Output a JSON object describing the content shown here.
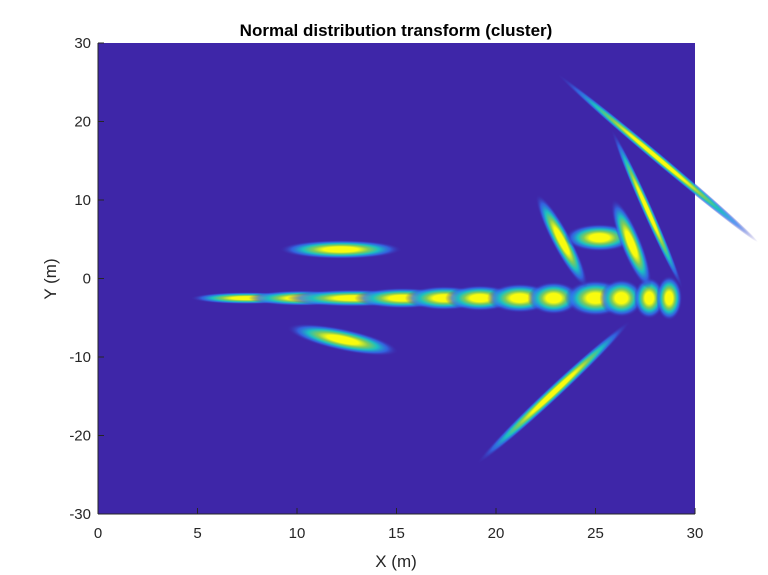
{
  "chart_data": {
    "type": "heatmap",
    "title": "Normal distribution transform (cluster)",
    "xlabel": "X (m)",
    "ylabel": "Y (m)",
    "xlim": [
      0,
      30
    ],
    "ylim": [
      -30,
      30
    ],
    "xticks": [
      0,
      5,
      10,
      15,
      20,
      25,
      30
    ],
    "yticks": [
      30,
      20,
      10,
      0,
      -10,
      -20,
      -30
    ],
    "xtick_labels": [
      "0",
      "5",
      "10",
      "15",
      "20",
      "25",
      "30"
    ],
    "ytick_labels": [
      "30",
      "20",
      "10",
      "0",
      "-10",
      "-20",
      "-30"
    ],
    "grid": false,
    "colormap": "parula",
    "colors": {
      "background": "#3e26a8",
      "low": "#3e26a8",
      "mid_blue": "#2f74f0",
      "cyan": "#1bbfc2",
      "green": "#80cb59",
      "yellow": "#f9fb0e"
    },
    "distributions": [
      {
        "mean": [
          7.5,
          -2.5
        ],
        "sigma_major": 1.3,
        "sigma_minor": 0.35,
        "angle_deg": 0
      },
      {
        "mean": [
          10.2,
          -2.5
        ],
        "sigma_major": 1.2,
        "sigma_minor": 0.45,
        "angle_deg": 0
      },
      {
        "mean": [
          12.8,
          -2.5
        ],
        "sigma_major": 1.5,
        "sigma_minor": 0.5,
        "angle_deg": 0
      },
      {
        "mean": [
          15.3,
          -2.5
        ],
        "sigma_major": 1.1,
        "sigma_minor": 0.6,
        "angle_deg": 0
      },
      {
        "mean": [
          17.4,
          -2.5
        ],
        "sigma_major": 0.9,
        "sigma_minor": 0.7,
        "angle_deg": 0
      },
      {
        "mean": [
          19.2,
          -2.5
        ],
        "sigma_major": 0.8,
        "sigma_minor": 0.75,
        "angle_deg": 0
      },
      {
        "mean": [
          21.2,
          -2.5
        ],
        "sigma_major": 0.75,
        "sigma_minor": 0.85,
        "angle_deg": 0
      },
      {
        "mean": [
          22.9,
          -2.5
        ],
        "sigma_major": 0.6,
        "sigma_minor": 0.95,
        "angle_deg": 0
      },
      {
        "mean": [
          25.0,
          -2.5
        ],
        "sigma_major": 0.7,
        "sigma_minor": 1.05,
        "angle_deg": 0
      },
      {
        "mean": [
          26.3,
          -2.5
        ],
        "sigma_major": 0.5,
        "sigma_minor": 1.1,
        "angle_deg": 0
      },
      {
        "mean": [
          27.7,
          -2.5
        ],
        "sigma_major": 0.35,
        "sigma_minor": 1.2,
        "angle_deg": 0
      },
      {
        "mean": [
          28.7,
          -2.5
        ],
        "sigma_major": 0.3,
        "sigma_minor": 1.3,
        "angle_deg": 0
      },
      {
        "mean": [
          12.2,
          3.7
        ],
        "sigma_major": 1.4,
        "sigma_minor": 0.55,
        "angle_deg": 0
      },
      {
        "mean": [
          12.3,
          -7.8
        ],
        "sigma_major": 1.3,
        "sigma_minor": 0.65,
        "angle_deg": -12
      },
      {
        "mean": [
          23.3,
          4.8
        ],
        "sigma_major": 1.2,
        "sigma_minor": 0.55,
        "angle_deg": -62
      },
      {
        "mean": [
          25.2,
          5.2
        ],
        "sigma_major": 0.8,
        "sigma_minor": 0.8,
        "angle_deg": 0
      },
      {
        "mean": [
          26.8,
          4.4
        ],
        "sigma_major": 1.1,
        "sigma_minor": 0.6,
        "angle_deg": -68
      },
      {
        "mean": [
          27.6,
          8.8
        ],
        "sigma_major": 2.0,
        "sigma_minor": 0.3,
        "angle_deg": -66
      },
      {
        "mean": [
          28.1,
          15.4
        ],
        "sigma_major": 3.0,
        "sigma_minor": 0.3,
        "angle_deg": -40
      },
      {
        "mean": [
          22.9,
          -14.5
        ],
        "sigma_major": 2.4,
        "sigma_minor": 0.4,
        "angle_deg": 43
      }
    ]
  }
}
